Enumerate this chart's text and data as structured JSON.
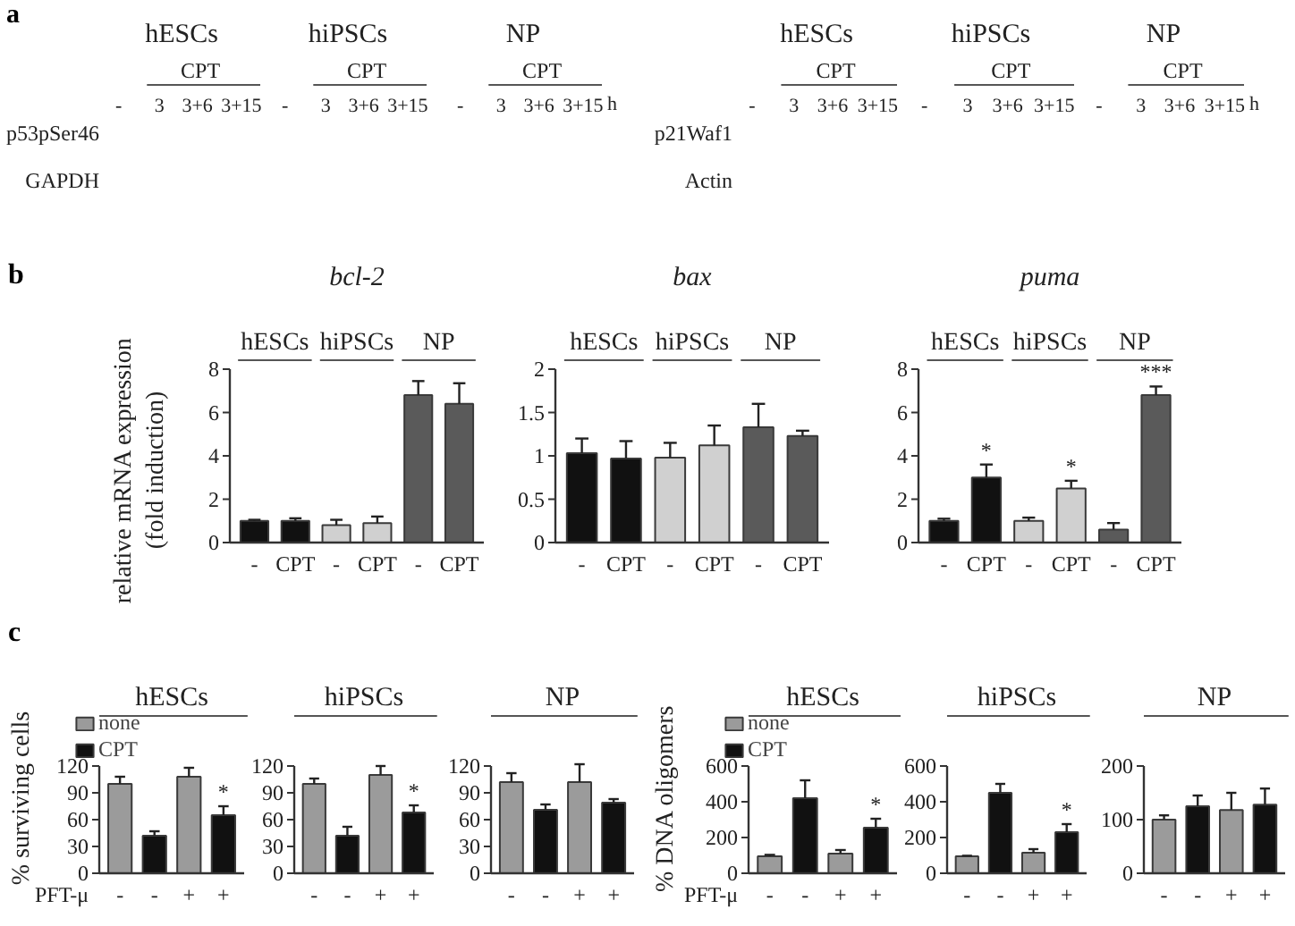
{
  "chart_data": [
    {
      "type": "other",
      "categories": [
        "hESCs",
        "hiPSCs",
        "NP"
      ],
      "annotations": [
        "CPT",
        "-",
        "3",
        "3+6",
        "3+15",
        "h",
        "p53pSer46",
        "GAPDH",
        "a"
      ]
    },
    {
      "type": "other",
      "categories": [
        "hESCs",
        "hiPSCs",
        "NP"
      ],
      "annotations": [
        "CPT",
        "-",
        "3",
        "3+6",
        "3+15",
        "h",
        "p21Waf1",
        "Actin"
      ]
    },
    {
      "type": "bar",
      "title": "bcl-2",
      "ylabel": "relative mRNA expression\n(fold induction)",
      "categories": [
        "-",
        "CPT",
        "-",
        "CPT",
        "-",
        "CPT"
      ],
      "values": [
        1.0,
        1.0,
        0.8,
        0.9,
        6.8,
        6.4
      ],
      "colors": [
        "#111111",
        "#111111",
        "#d0d0d0",
        "#d0d0d0",
        "#5a5a5a",
        "#5a5a5a"
      ],
      "errors": [
        0.05,
        0.12,
        0.25,
        0.3,
        0.65,
        0.95
      ],
      "ylim": [
        0,
        8
      ],
      "yticks": [
        0,
        2,
        4,
        6,
        8
      ],
      "annotations": [
        "hESCs",
        "hiPSCs",
        "NP",
        "b"
      ]
    },
    {
      "type": "bar",
      "title": "bax",
      "categories": [
        "-",
        "CPT",
        "-",
        "CPT",
        "-",
        "CPT"
      ],
      "values": [
        1.03,
        0.97,
        0.98,
        1.12,
        1.33,
        1.23
      ],
      "colors": [
        "#111111",
        "#111111",
        "#d0d0d0",
        "#d0d0d0",
        "#5a5a5a",
        "#5a5a5a"
      ],
      "errors": [
        0.17,
        0.2,
        0.17,
        0.23,
        0.27,
        0.06
      ],
      "ylim": [
        0,
        2
      ],
      "yticks": [
        0,
        0.5,
        1,
        1.5,
        2
      ],
      "annotations": [
        "hESCs",
        "hiPSCs",
        "NP"
      ]
    },
    {
      "type": "bar",
      "title": "puma",
      "categories": [
        "-",
        "CPT",
        "-",
        "CPT",
        "-",
        "CPT"
      ],
      "values": [
        1.0,
        3.0,
        1.0,
        2.5,
        0.6,
        6.8
      ],
      "colors": [
        "#111111",
        "#111111",
        "#d0d0d0",
        "#d0d0d0",
        "#5a5a5a",
        "#5a5a5a"
      ],
      "errors": [
        0.1,
        0.6,
        0.15,
        0.35,
        0.3,
        0.4
      ],
      "value_labels": [
        null,
        "*",
        null,
        "*",
        null,
        "***"
      ],
      "ylim": [
        0,
        8
      ],
      "yticks": [
        0,
        2,
        4,
        6,
        8
      ],
      "annotations": [
        "hESCs",
        "hiPSCs",
        "NP"
      ]
    },
    {
      "type": "bar",
      "title": "hESCs",
      "ylabel": "% surviving cells",
      "xlabel": "PFT-μ",
      "categories": [
        "-",
        "-",
        "+",
        "+"
      ],
      "legend": "top left",
      "ylim": [
        0,
        120
      ],
      "yticks": [
        0,
        30,
        60,
        90,
        120
      ],
      "annotations": [
        "c"
      ],
      "series": [
        {
          "name": "none",
          "color": "#9b9b9b",
          "values": [
            100,
            null,
            108,
            null
          ],
          "errors": [
            8,
            null,
            10,
            null
          ]
        },
        {
          "name": "CPT",
          "color": "#111111",
          "values": [
            null,
            42,
            null,
            65
          ],
          "errors": [
            null,
            5,
            null,
            10
          ],
          "value_labels": [
            null,
            null,
            null,
            "*"
          ]
        }
      ]
    },
    {
      "type": "bar",
      "title": "hiPSCs",
      "categories": [
        "-",
        "-",
        "+",
        "+"
      ],
      "ylim": [
        0,
        120
      ],
      "yticks": [
        0,
        30,
        60,
        90,
        120
      ],
      "series": [
        {
          "color": "#9b9b9b",
          "values": [
            100,
            null,
            110,
            null
          ],
          "errors": [
            6,
            null,
            10,
            null
          ]
        },
        {
          "color": "#111111",
          "values": [
            null,
            42,
            null,
            68
          ],
          "errors": [
            null,
            10,
            null,
            8
          ],
          "value_labels": [
            null,
            null,
            null,
            "*"
          ]
        }
      ]
    },
    {
      "type": "bar",
      "title": "NP",
      "categories": [
        "-",
        "-",
        "+",
        "+"
      ],
      "ylim": [
        0,
        120
      ],
      "yticks": [
        0,
        30,
        60,
        90,
        120
      ],
      "series": [
        {
          "color": "#9b9b9b",
          "values": [
            102,
            null,
            102,
            null
          ],
          "errors": [
            10,
            null,
            20,
            null
          ]
        },
        {
          "color": "#111111",
          "values": [
            null,
            71,
            null,
            79
          ],
          "errors": [
            null,
            6,
            null,
            4
          ]
        }
      ]
    },
    {
      "type": "bar",
      "title": "hESCs",
      "ylabel": "% DNA oligomers",
      "xlabel": "PFT-μ",
      "categories": [
        "-",
        "-",
        "+",
        "+"
      ],
      "legend": "top left",
      "ylim": [
        0,
        600
      ],
      "yticks": [
        0,
        200,
        400,
        600
      ],
      "series": [
        {
          "name": "none",
          "color": "#9b9b9b",
          "values": [
            95,
            null,
            110,
            null
          ],
          "errors": [
            8,
            null,
            20,
            null
          ]
        },
        {
          "name": "CPT",
          "color": "#111111",
          "values": [
            null,
            420,
            null,
            255
          ],
          "errors": [
            null,
            100,
            null,
            50
          ],
          "value_labels": [
            null,
            null,
            null,
            "*"
          ]
        }
      ]
    },
    {
      "type": "bar",
      "title": "hiPSCs",
      "categories": [
        "-",
        "-",
        "+",
        "+"
      ],
      "ylim": [
        0,
        600
      ],
      "yticks": [
        0,
        200,
        400,
        600
      ],
      "series": [
        {
          "color": "#9b9b9b",
          "values": [
            95,
            null,
            115,
            null
          ],
          "errors": [
            3,
            null,
            20,
            null
          ]
        },
        {
          "color": "#111111",
          "values": [
            null,
            450,
            null,
            230
          ],
          "errors": [
            null,
            50,
            null,
            45
          ],
          "value_labels": [
            null,
            null,
            null,
            "*"
          ]
        }
      ]
    },
    {
      "type": "bar",
      "title": "NP",
      "categories": [
        "-",
        "-",
        "+",
        "+"
      ],
      "ylim": [
        0,
        200
      ],
      "yticks": [
        0,
        100,
        200
      ],
      "series": [
        {
          "color": "#9b9b9b",
          "values": [
            100,
            null,
            118,
            null
          ],
          "errors": [
            8,
            null,
            32,
            null
          ]
        },
        {
          "color": "#111111",
          "values": [
            null,
            125,
            null,
            128
          ],
          "errors": [
            null,
            20,
            null,
            30
          ]
        }
      ]
    }
  ]
}
